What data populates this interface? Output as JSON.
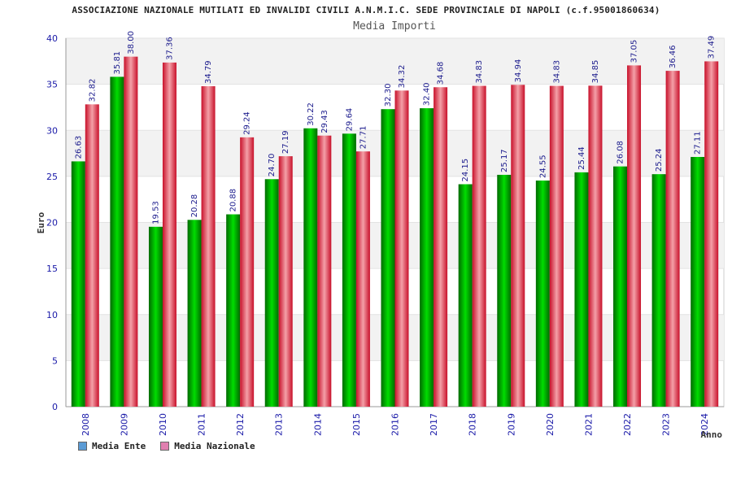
{
  "header": {
    "title": "ASSOCIAZIONE NAZIONALE MUTILATI ED INVALIDI CIVILI A.N.M.I.C. SEDE PROVINCIALE DI NAPOLI (c.f.95001860634)",
    "subtitle": "Media Importi"
  },
  "legend": {
    "items": [
      {
        "label": "Media Ente",
        "color": "#5b9bd5"
      },
      {
        "label": "Media Nazionale",
        "color": "#e080b0"
      }
    ]
  },
  "chart_data": {
    "type": "bar",
    "title": "Media Importi",
    "xlabel": "Anno",
    "ylabel": "Euro",
    "ylim": [
      0,
      40
    ],
    "yticks": [
      0,
      5,
      10,
      15,
      20,
      25,
      30,
      35,
      40
    ],
    "grid": true,
    "legend_position": "bottom-left",
    "categories": [
      "2008",
      "2009",
      "2010",
      "2011",
      "2012",
      "2013",
      "2014",
      "2015",
      "2016",
      "2017",
      "2018",
      "2019",
      "2020",
      "2021",
      "2022",
      "2023",
      "2024"
    ],
    "series": [
      {
        "name": "Media Ente",
        "color": "#00aa00",
        "values": [
          26.63,
          35.81,
          19.53,
          20.28,
          20.88,
          24.7,
          30.22,
          29.64,
          32.3,
          32.4,
          24.15,
          25.17,
          24.55,
          25.44,
          26.08,
          25.24,
          27.11
        ],
        "labels": [
          "26.63",
          "35.81",
          "19.53",
          "20.28",
          "20.88",
          "24.70",
          "30.22",
          "29.64",
          "32.30",
          "32.40",
          "24.15",
          "25.17",
          "24.55",
          "25.44",
          "26.08",
          "25.24",
          "27.11"
        ]
      },
      {
        "name": "Media Nazionale",
        "color": "#e8303c",
        "values": [
          32.82,
          38.0,
          37.36,
          34.79,
          29.24,
          27.19,
          29.43,
          27.71,
          34.32,
          34.68,
          34.83,
          34.94,
          34.83,
          34.85,
          37.05,
          36.46,
          37.49
        ],
        "labels": [
          "32.82",
          "38.00",
          "37.36",
          "34.79",
          "29.24",
          "27.19",
          "29.43",
          "27.71",
          "34.32",
          "34.68",
          "34.83",
          "34.94",
          "34.83",
          "34.85",
          "37.05",
          "36.46",
          "37.49"
        ]
      }
    ]
  }
}
